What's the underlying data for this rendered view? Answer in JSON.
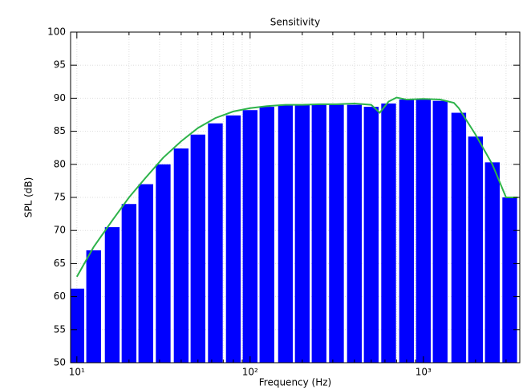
{
  "chart_data": {
    "type": "bar",
    "title": "Sensitivity",
    "x_label": "Frequency (Hz)",
    "y_label": "SPL (dB)",
    "x_scale": "log",
    "grid": true,
    "xlim": [
      9.2,
      3600
    ],
    "ylim": [
      50,
      100
    ],
    "xticks": [
      {
        "value": 10,
        "label": "10¹"
      },
      {
        "value": 100,
        "label": "10²"
      },
      {
        "value": 1000,
        "label": "10³"
      }
    ],
    "yticks": [
      50,
      55,
      60,
      65,
      70,
      75,
      80,
      85,
      90,
      95,
      100
    ],
    "bars": {
      "color": "#0000ff",
      "x": [
        10,
        12.5,
        16,
        20,
        25,
        31.5,
        40,
        50,
        63,
        80,
        100,
        125,
        160,
        200,
        250,
        315,
        400,
        500,
        630,
        800,
        1000,
        1250,
        1600,
        2000,
        2500,
        3150
      ],
      "values": [
        61.2,
        67,
        70.5,
        74,
        77,
        80,
        82.4,
        84.5,
        86.2,
        87.4,
        88.2,
        88.7,
        88.9,
        89,
        89,
        89,
        89,
        88.7,
        89.2,
        89.8,
        89.9,
        89.6,
        87.8,
        84.2,
        80.3,
        75
      ]
    },
    "line": {
      "color": "#2db34a",
      "x": [
        10,
        12.5,
        16,
        20,
        25,
        31.5,
        40,
        50,
        63,
        80,
        100,
        125,
        160,
        200,
        250,
        315,
        400,
        500,
        560,
        630,
        700,
        800,
        1000,
        1250,
        1500,
        1600,
        2000,
        2500,
        3000,
        3500
      ],
      "values": [
        63,
        67.5,
        71.5,
        75,
        78,
        81,
        83.5,
        85.5,
        87,
        88,
        88.5,
        88.8,
        89,
        89,
        89.1,
        89.1,
        89.2,
        89,
        87.8,
        89.5,
        90.1,
        89.8,
        89.9,
        89.8,
        89.3,
        88.5,
        84.5,
        80,
        75,
        75
      ]
    }
  }
}
